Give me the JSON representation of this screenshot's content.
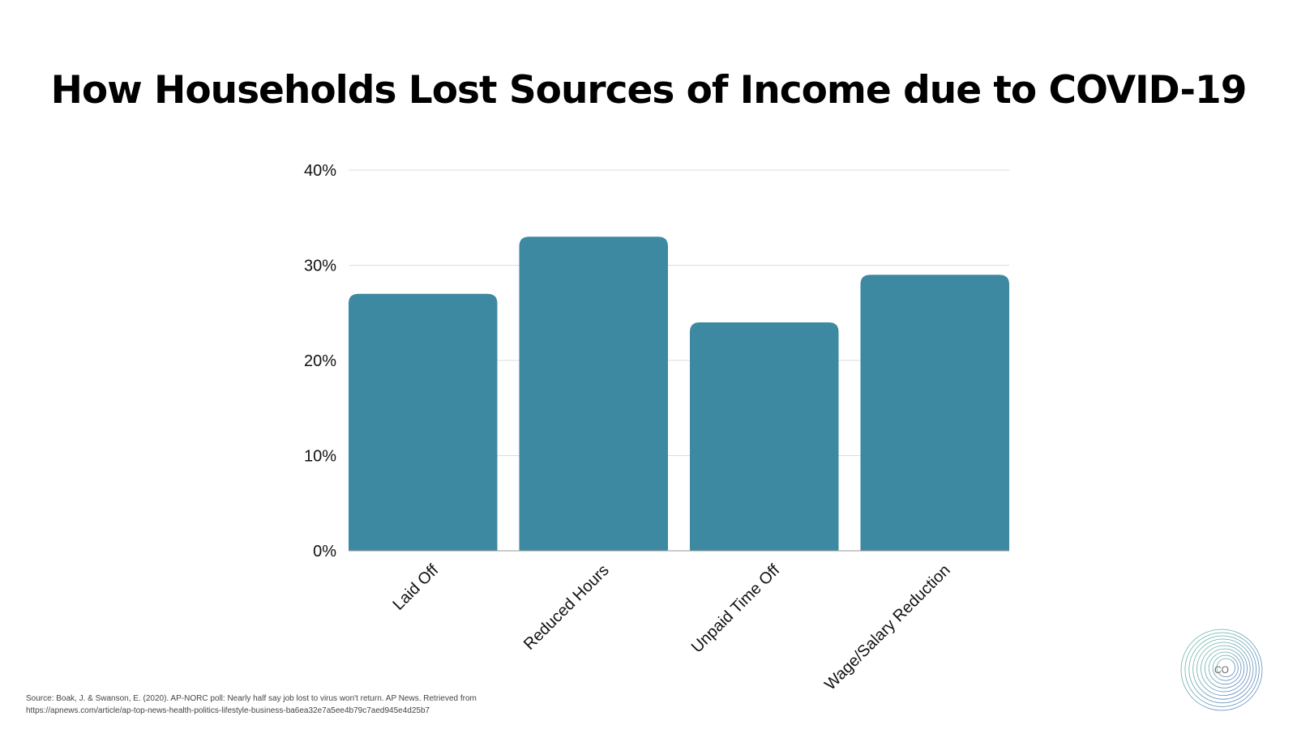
{
  "chart_data": {
    "type": "bar",
    "title": "How Households Lost Sources of Income due to COVID-19",
    "categories": [
      "Laid Off",
      "Reduced Hours",
      "Unpaid Time Off",
      "Wage/Salary Reduction"
    ],
    "values": [
      27,
      33,
      24,
      29
    ],
    "unit": "%",
    "ylim": [
      0,
      40
    ],
    "yticks": [
      0,
      10,
      20,
      30,
      40
    ],
    "ytick_labels": [
      "0%",
      "10%",
      "20%",
      "30%",
      "40%"
    ],
    "grid": true,
    "legend": "none",
    "bar_color": "#3d89a1"
  },
  "source": {
    "line1": "Source: Boak, J. & Swanson, E. (2020). AP-NORC poll: Nearly half say job lost to virus won't return. AP News. Retrieved from",
    "line2": "https://apnews.com/article/ap-top-news-health-politics-lifestyle-business-ba6ea32e7a5ee4b79c7aed945e4d25b7"
  },
  "logo": {
    "text": "CO",
    "icon": "concentric-circles-logo-icon"
  }
}
